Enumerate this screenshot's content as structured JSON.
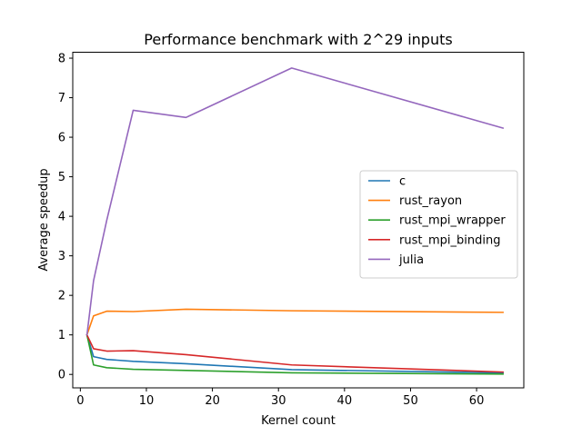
{
  "chart_data": {
    "type": "line",
    "title": "Performance benchmark with 2^29 inputs",
    "xlabel": "Kernel count",
    "ylabel": "Average speedup",
    "xlim": [
      -1.15,
      67.15
    ],
    "ylim": [
      -0.34,
      8.15
    ],
    "xticks": [
      0,
      10,
      20,
      30,
      40,
      50,
      60
    ],
    "yticks": [
      0,
      1,
      2,
      3,
      4,
      5,
      6,
      7,
      8
    ],
    "grid": false,
    "legend_position": "center-right",
    "x": [
      1,
      2,
      4,
      8,
      16,
      32,
      64
    ],
    "series": [
      {
        "name": "c",
        "color": "#1f77b4",
        "values": [
          1.0,
          0.45,
          0.38,
          0.33,
          0.27,
          0.12,
          0.04
        ]
      },
      {
        "name": "rust_rayon",
        "color": "#ff7f0e",
        "values": [
          1.0,
          1.48,
          1.6,
          1.59,
          1.65,
          1.61,
          1.57
        ]
      },
      {
        "name": "rust_mpi_wrapper",
        "color": "#2ca02c",
        "values": [
          1.0,
          0.24,
          0.17,
          0.13,
          0.1,
          0.04,
          0.01
        ]
      },
      {
        "name": "rust_mpi_binding",
        "color": "#d62728",
        "values": [
          1.0,
          0.65,
          0.59,
          0.6,
          0.5,
          0.24,
          0.06
        ]
      },
      {
        "name": "julia",
        "color": "#9467bd",
        "values": [
          1.0,
          2.37,
          3.9,
          6.68,
          6.5,
          7.75,
          6.23
        ]
      }
    ]
  }
}
